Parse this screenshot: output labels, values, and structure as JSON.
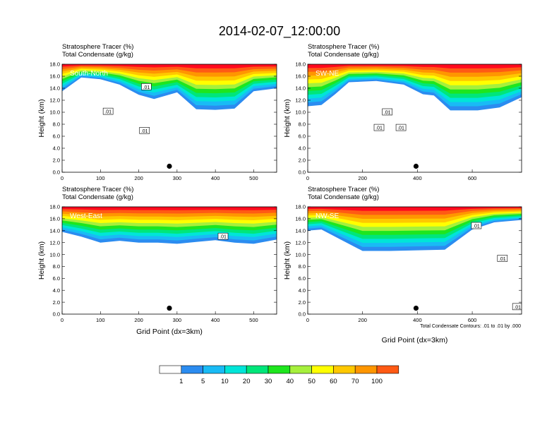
{
  "figure": {
    "title": "2014-02-07_12:00:00",
    "contour_note": "Total Condensate Contours: .01 to .01 by .000",
    "contour_label": ".01"
  },
  "colorbar": {
    "levels": [
      "1",
      "5",
      "10",
      "20",
      "30",
      "40",
      "50",
      "60",
      "70",
      "100"
    ],
    "colors": [
      "#ffffff",
      "#2b8cf0",
      "#19bbf5",
      "#00e5d8",
      "#00e67a",
      "#1ee61e",
      "#a6f03c",
      "#ffff00",
      "#ffc800",
      "#ff9600",
      "#ff5a14",
      "#ff0a1e"
    ]
  },
  "chart_data": [
    {
      "type": "heatmap",
      "panel": "South-North",
      "title_lines": [
        "Stratosphere Tracer   (%)",
        "Total Condensate   (g/kg)"
      ],
      "ylabel": "Height (km)",
      "xlabel": "",
      "xlim": [
        0,
        560
      ],
      "ylim": [
        0,
        18
      ],
      "xticks": [
        0,
        100,
        200,
        300,
        400,
        500
      ],
      "yticks": [
        "0.0",
        "2.0",
        "4.0",
        "6.0",
        "8.0",
        "10.0",
        "12.0",
        "14.0",
        "16.0",
        "18.0"
      ],
      "tracer_bottom_km": [
        [
          0,
          13.5
        ],
        [
          50,
          15.8
        ],
        [
          100,
          15.5
        ],
        [
          150,
          14.6
        ],
        [
          200,
          12.9
        ],
        [
          240,
          12.2
        ],
        [
          300,
          13.3
        ],
        [
          350,
          10.5
        ],
        [
          400,
          10.4
        ],
        [
          450,
          10.6
        ],
        [
          500,
          13.5
        ],
        [
          560,
          14.0
        ]
      ],
      "contour_labels": [
        [
          120,
          10.1
        ],
        [
          215,
          6.9
        ],
        [
          220,
          14.2
        ]
      ],
      "marker": [
        280,
        1.0
      ]
    },
    {
      "type": "heatmap",
      "panel": "SW-NE",
      "title_lines": [
        "Stratosphere Tracer   (%)",
        "Total Condensate   (g/kg)"
      ],
      "ylabel": "Height (km)",
      "xlabel": "",
      "xlim": [
        0,
        780
      ],
      "ylim": [
        0,
        18
      ],
      "xticks": [
        0,
        200,
        400,
        600
      ],
      "yticks": [
        "0.0",
        "2.0",
        "4.0",
        "6.0",
        "8.0",
        "10.0",
        "12.0",
        "14.0",
        "16.0",
        "18.0"
      ],
      "tracer_bottom_km": [
        [
          0,
          11.0
        ],
        [
          50,
          11.2
        ],
        [
          100,
          13.0
        ],
        [
          150,
          15.0
        ],
        [
          250,
          15.2
        ],
        [
          350,
          14.6
        ],
        [
          420,
          13.0
        ],
        [
          460,
          12.8
        ],
        [
          520,
          10.3
        ],
        [
          620,
          10.3
        ],
        [
          700,
          10.8
        ],
        [
          780,
          12.5
        ]
      ],
      "contour_labels": [
        [
          290,
          10.0
        ],
        [
          260,
          7.4
        ],
        [
          340,
          7.4
        ]
      ],
      "marker": [
        395,
        1.0
      ]
    },
    {
      "type": "heatmap",
      "panel": "West-East",
      "title_lines": [
        "Stratosphere Tracer   (%)",
        "Total Condensate   (g/kg)"
      ],
      "ylabel": "Height (km)",
      "xlabel": "Grid Point (dx=3km)",
      "xlim": [
        0,
        560
      ],
      "ylim": [
        0,
        18
      ],
      "xticks": [
        0,
        100,
        200,
        300,
        400,
        500
      ],
      "yticks": [
        "0.0",
        "2.0",
        "4.0",
        "6.0",
        "8.0",
        "10.0",
        "12.0",
        "14.0",
        "16.0",
        "18.0"
      ],
      "tracer_bottom_km": [
        [
          0,
          13.8
        ],
        [
          50,
          13.0
        ],
        [
          100,
          12.0
        ],
        [
          150,
          12.3
        ],
        [
          200,
          12.0
        ],
        [
          250,
          12.0
        ],
        [
          300,
          11.8
        ],
        [
          350,
          12.1
        ],
        [
          400,
          12.4
        ],
        [
          450,
          12.0
        ],
        [
          500,
          11.8
        ],
        [
          560,
          12.5
        ]
      ],
      "contour_labels": [
        [
          420,
          13.0
        ]
      ],
      "marker": [
        280,
        1.0
      ]
    },
    {
      "type": "heatmap",
      "panel": "NW-SE",
      "title_lines": [
        "Stratosphere Tracer   (%)",
        "Total Condensate   (g/kg)"
      ],
      "ylabel": "Height (km)",
      "xlabel": "Grid Point (dx=3km)",
      "xlim": [
        0,
        780
      ],
      "ylim": [
        0,
        18
      ],
      "xticks": [
        0,
        200,
        400,
        600
      ],
      "yticks": [
        "0.0",
        "2.0",
        "4.0",
        "6.0",
        "8.0",
        "10.0",
        "12.0",
        "14.0",
        "16.0",
        "18.0"
      ],
      "tracer_bottom_km": [
        [
          0,
          14.0
        ],
        [
          50,
          14.2
        ],
        [
          120,
          12.5
        ],
        [
          200,
          10.6
        ],
        [
          300,
          10.6
        ],
        [
          400,
          10.7
        ],
        [
          500,
          10.8
        ],
        [
          600,
          14.2
        ],
        [
          680,
          15.4
        ],
        [
          780,
          15.8
        ]
      ],
      "contour_labels": [
        [
          615,
          14.8
        ],
        [
          710,
          9.3
        ],
        [
          765,
          1.2
        ]
      ],
      "marker": [
        395,
        1.0
      ]
    }
  ]
}
